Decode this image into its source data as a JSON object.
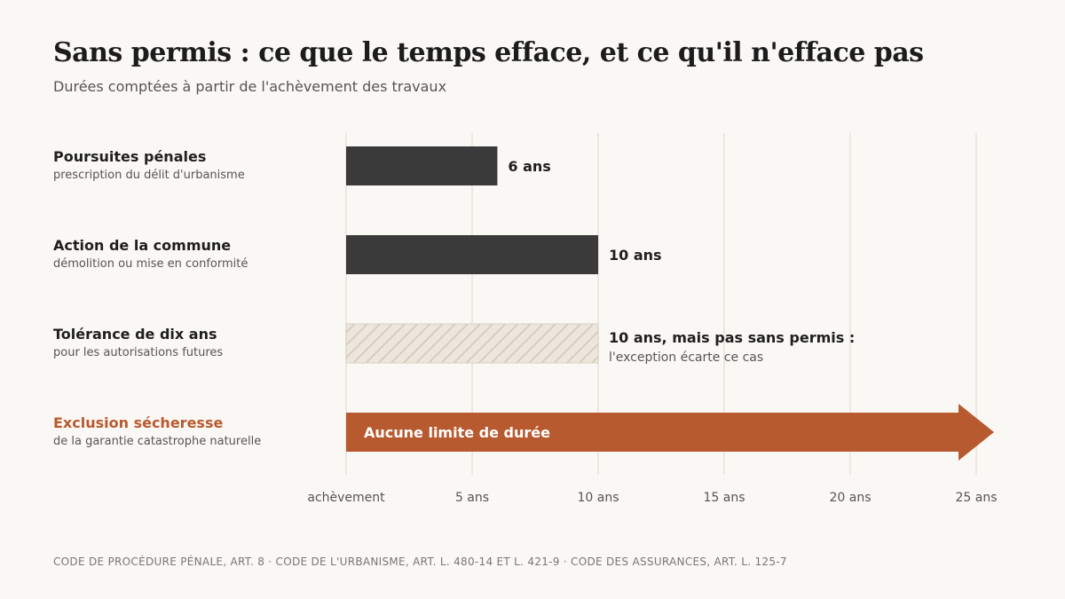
{
  "title": "Sans permis : ce que le temps efface, et ce qu'il n'efface pas",
  "subtitle": "Durées comptées à partir de l'achèvement des travaux",
  "rows": [
    {
      "label": "Poursuites pénales",
      "sublabel": "prescription du délit d'urbanisme",
      "accent": false
    },
    {
      "label": "Action de la commune",
      "sublabel": "démolition ou mise en conformité",
      "accent": false
    },
    {
      "label": "Tolérance de dix ans",
      "sublabel": "pour les autorisations futures",
      "accent": false
    },
    {
      "label": "Exclusion sécheresse",
      "sublabel": "de la garantie catastrophe naturelle",
      "accent": true
    }
  ],
  "footer": "CODE DE PROCÉDURE PÉNALE, ART. 8 · CODE DE L'URBANISME, ART. L. 480-14 ET L. 421-9 · CODE DES ASSURANCES, ART. L. 125-7",
  "colors": {
    "bar": "#3a3a3a",
    "accent": "#b85a30",
    "hatch_fill": "#ece6dc",
    "hatch_line": "#cfc7b8",
    "grid": "#e6e2da",
    "background": "#faf8f4"
  },
  "chart_data": {
    "type": "bar",
    "orientation": "horizontal",
    "title": "Sans permis : ce que le temps efface, et ce qu'il n'efface pas",
    "subtitle": "Durées comptées à partir de l'achèvement des travaux",
    "xlim": [
      0,
      25
    ],
    "x_ticks": [
      {
        "value": 0,
        "label": "achèvement"
      },
      {
        "value": 5,
        "label": "5 ans"
      },
      {
        "value": 10,
        "label": "10 ans"
      },
      {
        "value": 15,
        "label": "15 ans"
      },
      {
        "value": 20,
        "label": "20 ans"
      },
      {
        "value": 25,
        "label": "25 ans"
      }
    ],
    "grid": true,
    "bars": [
      {
        "category": "Poursuites pénales",
        "value": 6,
        "style": "solid",
        "label": "6 ans",
        "note": ""
      },
      {
        "category": "Action de la commune",
        "value": 10,
        "style": "solid",
        "label": "10 ans",
        "note": ""
      },
      {
        "category": "Tolérance de dix ans",
        "value": 10,
        "style": "hatched",
        "label": "10 ans, mais pas sans permis :",
        "note": "l'exception écarte ce cas"
      },
      {
        "category": "Exclusion sécheresse",
        "value": null,
        "style": "unbounded-arrow",
        "label": "Aucune limite de durée",
        "note": ""
      }
    ]
  }
}
